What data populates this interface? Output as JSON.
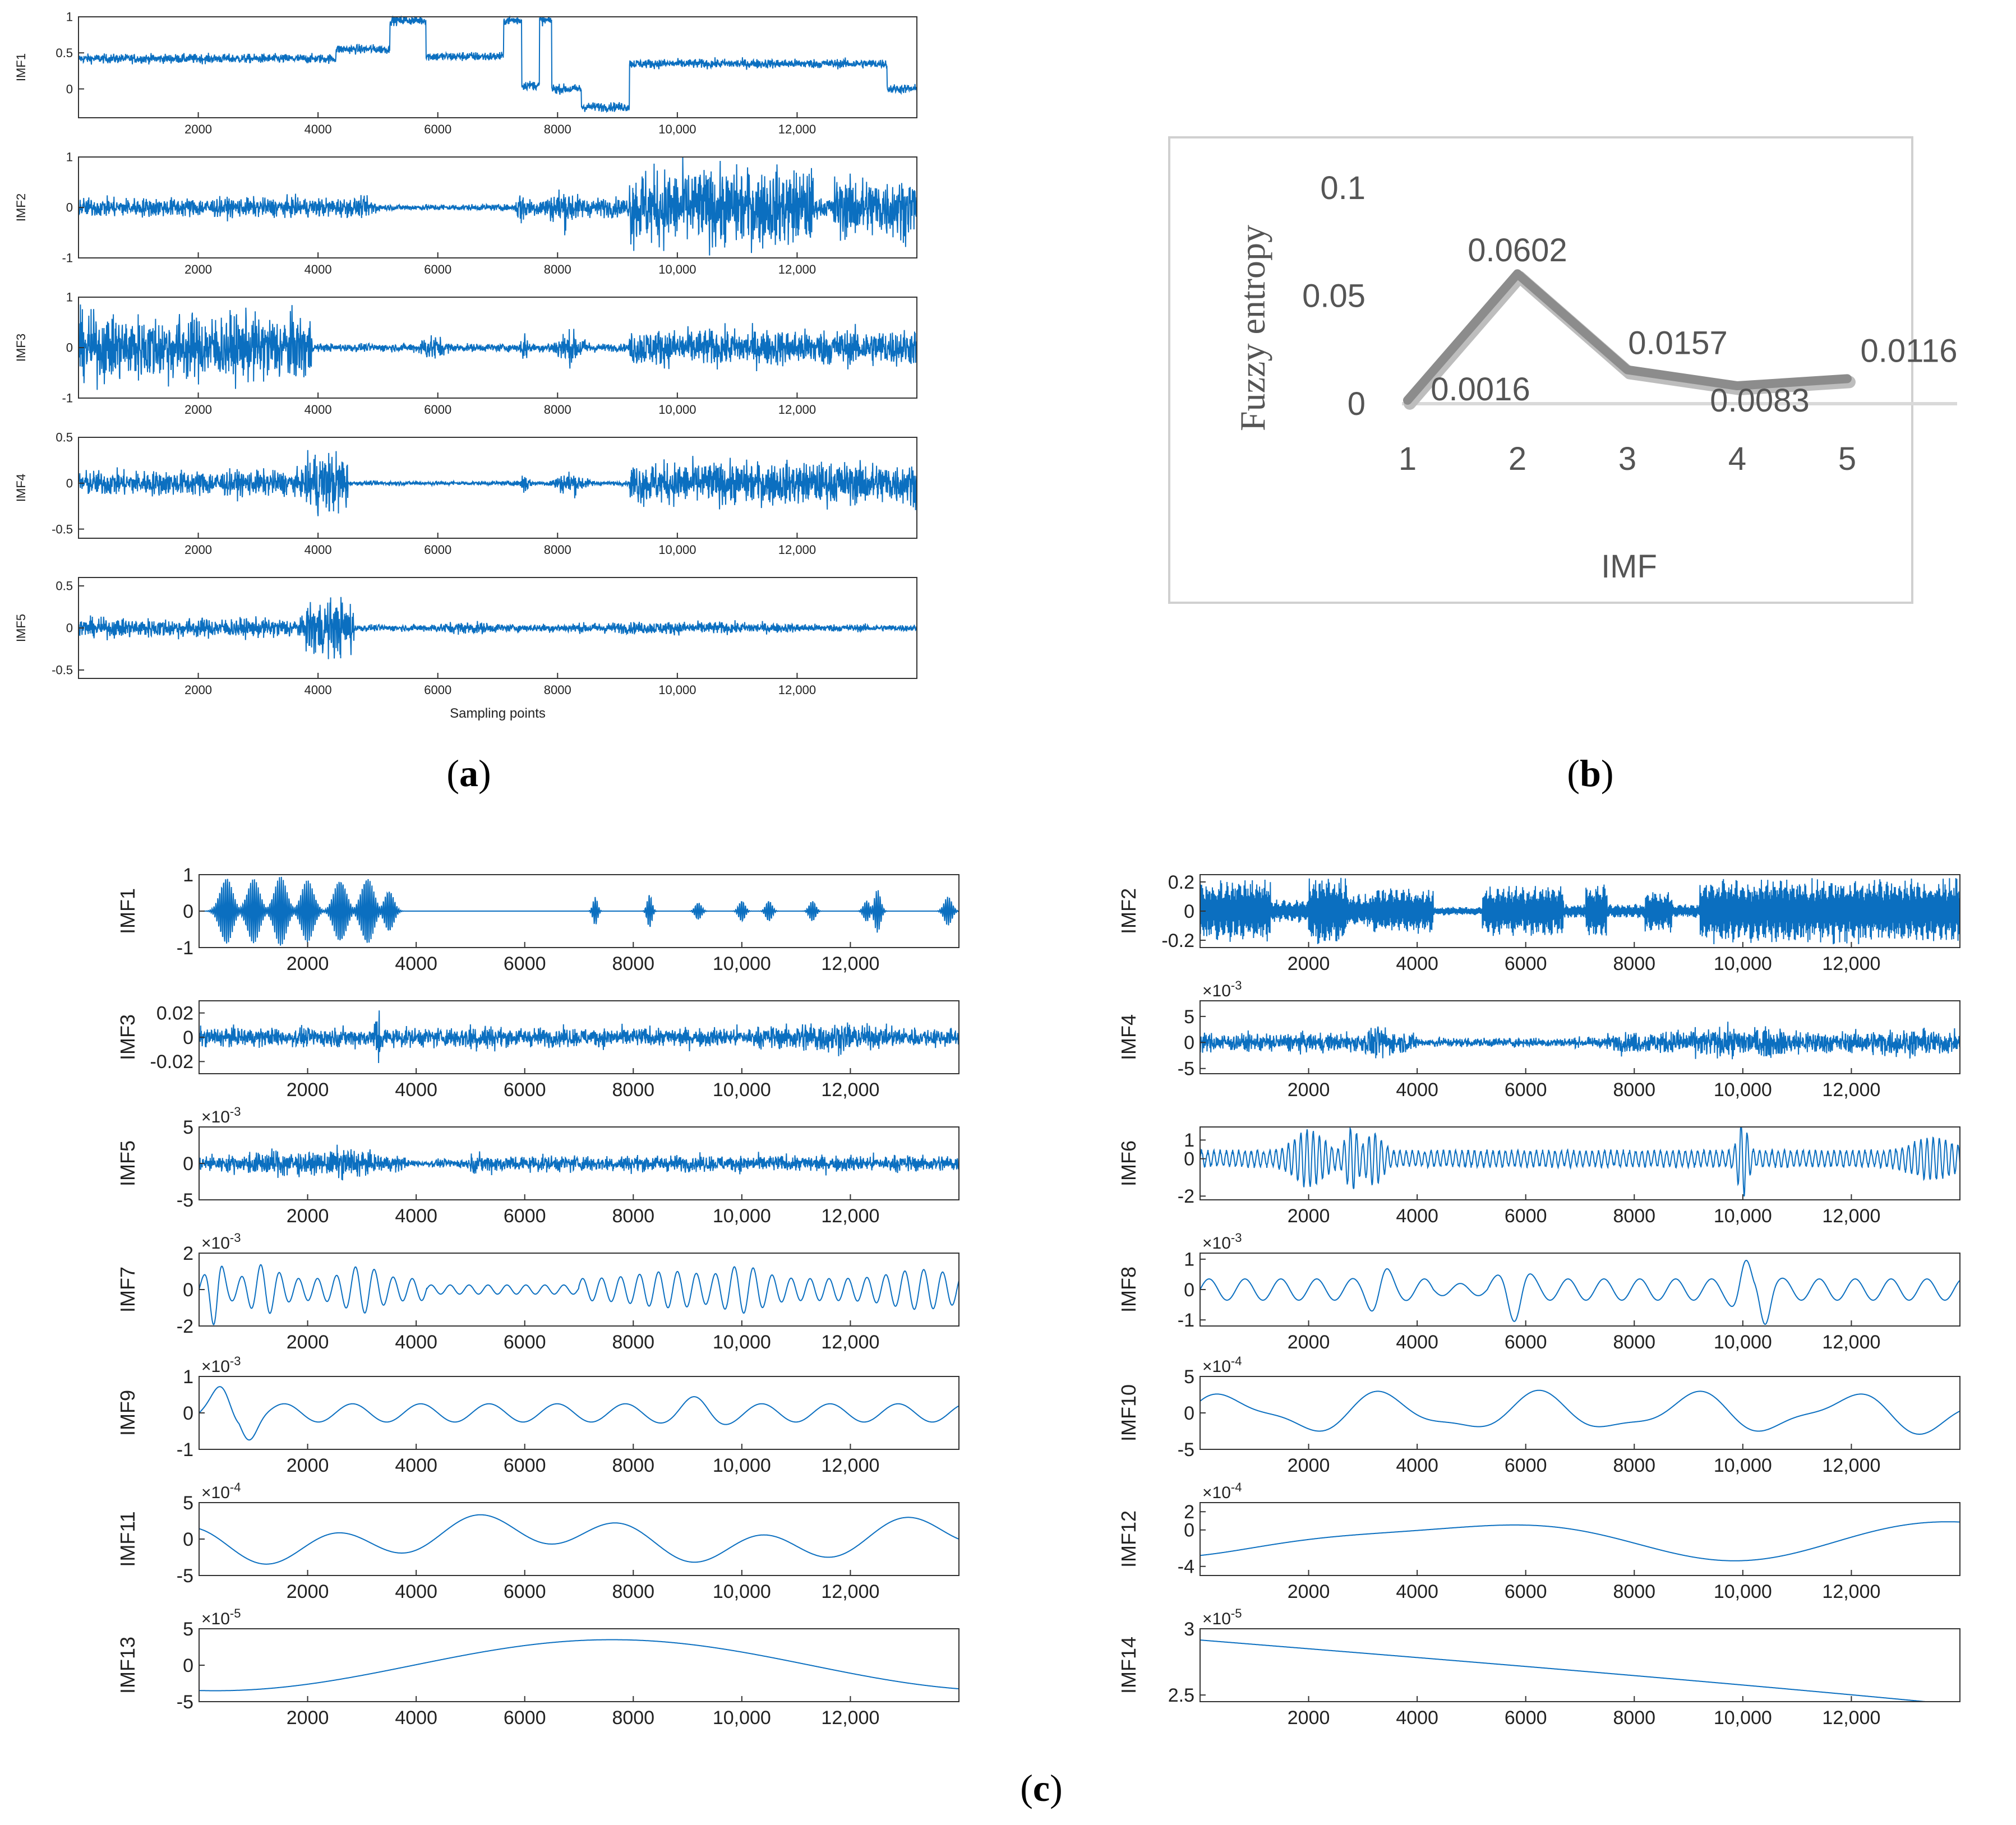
{
  "figure": {
    "caption_a": "a",
    "caption_b": "b",
    "caption_c": "c"
  },
  "colors": {
    "signal": "#0b6fc0",
    "axis": "#333333",
    "fuzzy_line": "#8c8c8c",
    "panel_border": "#d0d0d0",
    "b_text": "#555555"
  },
  "panel_a": {
    "xlabel": "Sampling points",
    "x_ticks": [
      "2000",
      "4000",
      "6000",
      "8000",
      "10,000",
      "12,000"
    ],
    "x_tick_values": [
      2000,
      4000,
      6000,
      8000,
      10000,
      12000
    ],
    "x_range": [
      0,
      14000
    ],
    "subplots": [
      {
        "label": "IMF1",
        "y_ticks": [
          "1",
          "0.5",
          "0"
        ],
        "y_tick_values": [
          1,
          0.5,
          0
        ],
        "y_range": [
          -0.4,
          1.0
        ]
      },
      {
        "label": "IMF2",
        "y_ticks": [
          "1",
          "0",
          "-1"
        ],
        "y_tick_values": [
          1,
          0,
          -1
        ],
        "y_range": [
          -1,
          1
        ]
      },
      {
        "label": "IMF3",
        "y_ticks": [
          "1",
          "0",
          "-1"
        ],
        "y_tick_values": [
          1,
          0,
          -1
        ],
        "y_range": [
          -1,
          1
        ]
      },
      {
        "label": "IMF4",
        "y_ticks": [
          "0.5",
          "0",
          "-0.5"
        ],
        "y_tick_values": [
          0.5,
          0,
          -0.5
        ],
        "y_range": [
          -0.6,
          0.5
        ]
      },
      {
        "label": "IMF5",
        "y_ticks": [
          "0.5",
          "0",
          "-0.5"
        ],
        "y_tick_values": [
          0.5,
          0,
          -0.5
        ],
        "y_range": [
          -0.6,
          0.6
        ]
      }
    ]
  },
  "chart_data": {
    "type": "line",
    "title": "",
    "xlabel": "IMF",
    "ylabel": "Fuzzy entropy",
    "categories": [
      "1",
      "2",
      "3",
      "4",
      "5"
    ],
    "values": [
      0.0016,
      0.0602,
      0.0157,
      0.0083,
      0.0116
    ],
    "value_labels": [
      "0.0016",
      "0.0602",
      "0.0157",
      "0.0083",
      "0.0116"
    ],
    "y_ticks": [
      "0.1",
      "0.05",
      "0"
    ],
    "y_tick_values": [
      0.1,
      0.05,
      0
    ],
    "ylim": [
      0,
      0.1
    ],
    "grid": false
  },
  "panel_c": {
    "x_ticks": [
      "2000",
      "4000",
      "6000",
      "8000",
      "10,000",
      "12,000"
    ],
    "x_tick_values": [
      2000,
      4000,
      6000,
      8000,
      10000,
      12000
    ],
    "x_range": [
      0,
      14000
    ],
    "subplots": [
      {
        "label": "IMF1",
        "exponent": "",
        "y_ticks": [
          "1",
          "0",
          "-1"
        ],
        "y_tick_values": [
          1,
          0,
          -1
        ],
        "y_range": [
          -1,
          1
        ]
      },
      {
        "label": "IMF2",
        "exponent": "",
        "y_ticks": [
          "0.2",
          "0",
          "-0.2"
        ],
        "y_tick_values": [
          0.2,
          0,
          -0.2
        ],
        "y_range": [
          -0.25,
          0.25
        ]
      },
      {
        "label": "IMF3",
        "exponent": "",
        "y_ticks": [
          "0.02",
          "0",
          "-0.02"
        ],
        "y_tick_values": [
          0.02,
          0,
          -0.02
        ],
        "y_range": [
          -0.03,
          0.03
        ]
      },
      {
        "label": "IMF4",
        "exponent": "-3",
        "y_ticks": [
          "5",
          "0",
          "-5"
        ],
        "y_tick_values": [
          5,
          0,
          -5
        ],
        "y_range": [
          -6,
          8
        ]
      },
      {
        "label": "IMF5",
        "exponent": "-3",
        "y_ticks": [
          "5",
          "0",
          "-5"
        ],
        "y_tick_values": [
          5,
          0,
          -5
        ],
        "y_range": [
          -5,
          5
        ]
      },
      {
        "label": "IMF6",
        "exponent": "",
        "y_ticks": [
          "1",
          "0",
          "-2"
        ],
        "y_tick_values": [
          1,
          0,
          -2
        ],
        "y_range": [
          -2.2,
          1.7
        ]
      },
      {
        "label": "IMF7",
        "exponent": "-3",
        "y_ticks": [
          "2",
          "0",
          "-2"
        ],
        "y_tick_values": [
          2,
          0,
          -2
        ],
        "y_range": [
          -2,
          2
        ]
      },
      {
        "label": "IMF8",
        "exponent": "-3",
        "y_ticks": [
          "1",
          "0",
          "-1"
        ],
        "y_tick_values": [
          1,
          0,
          -1
        ],
        "y_range": [
          -1.2,
          1.2
        ]
      },
      {
        "label": "IMF9",
        "exponent": "-3",
        "y_ticks": [
          "1",
          "0",
          "-1"
        ],
        "y_tick_values": [
          1,
          0,
          -1
        ],
        "y_range": [
          -1,
          1
        ]
      },
      {
        "label": "IMF10",
        "exponent": "-4",
        "y_ticks": [
          "5",
          "0",
          "-5"
        ],
        "y_tick_values": [
          5,
          0,
          -5
        ],
        "y_range": [
          -5,
          5
        ]
      },
      {
        "label": "IMF11",
        "exponent": "-4",
        "y_ticks": [
          "5",
          "0",
          "-5"
        ],
        "y_tick_values": [
          5,
          0,
          -5
        ],
        "y_range": [
          -5,
          5
        ]
      },
      {
        "label": "IMF12",
        "exponent": "-4",
        "y_ticks": [
          "2",
          "0",
          "-4"
        ],
        "y_tick_values": [
          2,
          0,
          -4
        ],
        "y_range": [
          -5,
          3
        ]
      },
      {
        "label": "IMF13",
        "exponent": "-5",
        "y_ticks": [
          "5",
          "0",
          "-5"
        ],
        "y_tick_values": [
          5,
          0,
          -5
        ],
        "y_range": [
          -5,
          5
        ]
      },
      {
        "label": "IMF14",
        "exponent": "-5",
        "y_ticks": [
          "3",
          "2.5"
        ],
        "y_tick_values": [
          3,
          2.5
        ],
        "y_range": [
          2.45,
          3.0
        ]
      }
    ]
  }
}
